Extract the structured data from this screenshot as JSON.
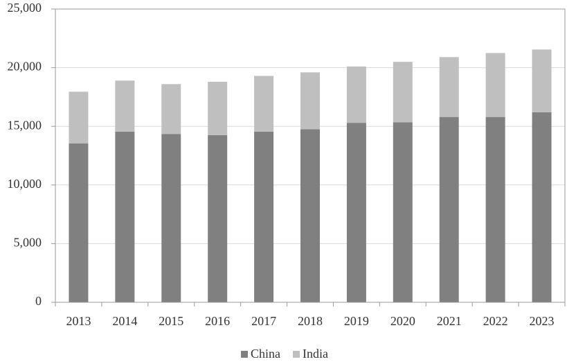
{
  "chart_data": {
    "type": "stacked-bar",
    "categories": [
      "2013",
      "2014",
      "2015",
      "2016",
      "2017",
      "2018",
      "2019",
      "2020",
      "2021",
      "2022",
      "2023"
    ],
    "series": [
      {
        "name": "China",
        "color": "#808080",
        "values": [
          13550,
          14550,
          14350,
          14250,
          14550,
          14750,
          15300,
          15350,
          15800,
          15800,
          16200
        ]
      },
      {
        "name": "India",
        "color": "#bfbfbf",
        "values": [
          4400,
          4350,
          4250,
          4550,
          4750,
          4850,
          4800,
          5150,
          5100,
          5450,
          5350
        ]
      }
    ],
    "ylim": [
      0,
      25000
    ],
    "yticks": [
      0,
      {
        "value": 5000,
        "label": "5,000"
      },
      {
        "value": 10000,
        "label": "10,000"
      },
      {
        "value": 15000,
        "label": "15,000"
      },
      {
        "value": 20000,
        "label": "20,000"
      },
      {
        "value": 25000,
        "label": "25,000"
      }
    ],
    "grid": true,
    "legend": "bottom"
  }
}
